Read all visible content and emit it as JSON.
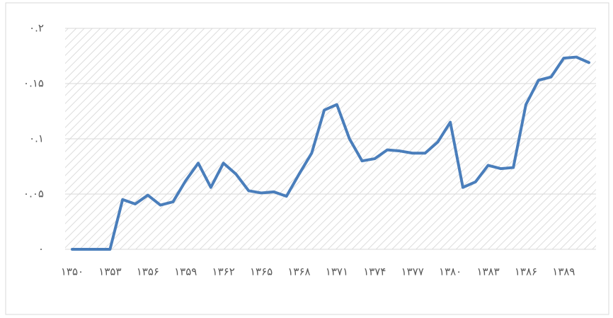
{
  "chart_data": {
    "type": "line",
    "categories": [
      "۱۳۵۰",
      null,
      null,
      "۱۳۵۳",
      null,
      null,
      "۱۳۵۶",
      null,
      null,
      "۱۳۵۹",
      null,
      null,
      "۱۳۶۲",
      null,
      null,
      "۱۳۶۵",
      null,
      null,
      "۱۳۶۸",
      null,
      null,
      "۱۳۷۱",
      null,
      null,
      "۱۳۷۴",
      null,
      null,
      "۱۳۷۷",
      null,
      null,
      "۱۳۸۰",
      null,
      null,
      "۱۳۸۳",
      null,
      null,
      "۱۳۸۶",
      null,
      null,
      "۱۳۸۹",
      null,
      null
    ],
    "series": [
      {
        "color": "#4a7ebb",
        "values": [
          0,
          0,
          0,
          0,
          0.045,
          0.041,
          0.049,
          0.04,
          0.043,
          0.062,
          0.078,
          0.056,
          0.078,
          0.068,
          0.053,
          0.051,
          0.052,
          0.048,
          0.068,
          0.087,
          0.126,
          0.131,
          0.1,
          0.08,
          0.082,
          0.09,
          0.089,
          0.087,
          0.087,
          0.097,
          0.115,
          0.056,
          0.061,
          0.076,
          0.073,
          0.074,
          0.131,
          0.153,
          0.156,
          0.173,
          0.174,
          0.169
        ]
      }
    ],
    "ylim": [
      0,
      0.2
    ],
    "yticks": [
      {
        "value": 0,
        "label": "۰"
      },
      {
        "value": 0.05,
        "label": "۰.۰۵"
      },
      {
        "value": 0.1,
        "label": "۰.۱"
      },
      {
        "value": 0.15,
        "label": "۰.۱۵"
      },
      {
        "value": 0.2,
        "label": "۰.۲"
      }
    ],
    "grid": true
  }
}
